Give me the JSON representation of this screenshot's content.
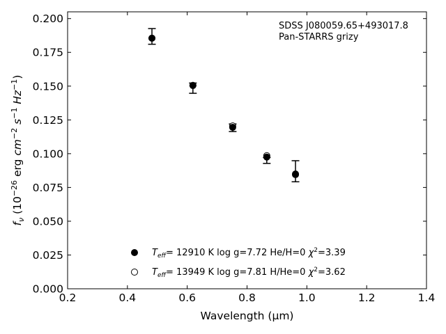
{
  "chart_data": {
    "type": "scatter",
    "xlabel": "Wavelength (μm)",
    "ylabel": "f_ν (10^-26 erg cm^-2 s^-1 Hz^-1)",
    "xlim": [
      0.2,
      1.4
    ],
    "ylim": [
      0.0,
      0.205
    ],
    "xticks": [
      "0.2",
      "0.4",
      "0.6",
      "0.8",
      "1.0",
      "1.2",
      "1.4"
    ],
    "yticks": [
      "0.000",
      "0.025",
      "0.050",
      "0.075",
      "0.100",
      "0.125",
      "0.150",
      "0.175",
      "0.200"
    ],
    "annotation": [
      "SDSS J080059.65+493017.8",
      "Pan-STARRS grizy"
    ],
    "grid": false,
    "legend_position": "lower-center",
    "observed": {
      "x": [
        0.482,
        0.619,
        0.752,
        0.866,
        0.962
      ],
      "y": [
        0.1868,
        0.1485,
        0.1192,
        0.095,
        0.087
      ],
      "yerr": [
        0.0058,
        0.0038,
        0.0028,
        0.0022,
        0.0078
      ]
    },
    "series": [
      {
        "label": {
          "t": "T",
          "sub": "eff",
          "main": "= 12910 K  log g=7.72  He/H=0  ",
          "chi": "χ",
          "sup": "2",
          "end": "=3.39"
        },
        "marker": "filled-circle",
        "x": [
          0.482,
          0.619,
          0.752,
          0.866,
          0.962
        ],
        "y": [
          0.1855,
          0.1505,
          0.1195,
          0.0975,
          0.085
        ]
      },
      {
        "label": {
          "t": "T",
          "sub": "eff",
          "main": "= 13949 K  log g=7.81  H/He=0  ",
          "chi": "χ",
          "sup": "2",
          "end": "=3.62"
        },
        "marker": "open-circle",
        "x": [
          0.482,
          0.619,
          0.752,
          0.866,
          0.962
        ],
        "y": [
          0.1855,
          0.1505,
          0.1205,
          0.0985,
          0.0845
        ]
      }
    ]
  }
}
